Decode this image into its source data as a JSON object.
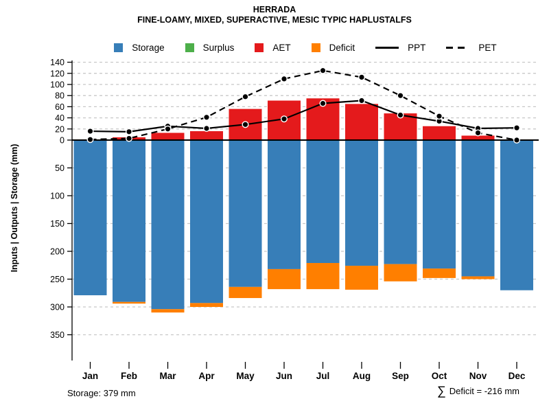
{
  "chart_data": {
    "type": "bar",
    "title": "HERRADA",
    "subtitle": "FINE-LOAMY, MIXED, SUPERACTIVE, MESIC TYPIC HAPLUSTALFS",
    "ylabel": "Inputs | Outputs | Storage  (mm)",
    "legend_position": "top",
    "grid": "dashed horizontal",
    "months": [
      "Jan",
      "Feb",
      "Mar",
      "Apr",
      "May",
      "Jun",
      "Jul",
      "Aug",
      "Sep",
      "Oct",
      "Nov",
      "Dec"
    ],
    "y_ticks_above_zero": [
      0,
      20,
      40,
      60,
      80,
      100,
      120,
      140
    ],
    "y_ticks_below_zero": [
      50,
      100,
      150,
      200,
      250,
      300,
      350
    ],
    "axis_note": "values above zero are inputs/outputs (mm), values below zero are storage depth (mm)",
    "series": [
      {
        "name": "Storage",
        "marker": "square",
        "direction": "down",
        "color": "#377EB8",
        "values": [
          279,
          291,
          304,
          293,
          264,
          232,
          221,
          226,
          223,
          231,
          245,
          270
        ]
      },
      {
        "name": "Surplus",
        "marker": "square",
        "direction": "up-stacked-on-AET",
        "color": "#4DAF4A",
        "values": [
          0,
          0,
          0,
          0,
          0,
          0,
          0,
          0,
          0,
          0,
          0,
          0
        ]
      },
      {
        "name": "AET",
        "marker": "square",
        "direction": "up",
        "color": "#E41A1C",
        "values": [
          0,
          5,
          13,
          16,
          56,
          71,
          75,
          65,
          48,
          25,
          8,
          0
        ]
      },
      {
        "name": "Deficit",
        "marker": "square",
        "direction": "down-stacked-on-Storage",
        "color": "#FF7F00",
        "values": [
          0,
          3,
          6,
          7,
          20,
          36,
          47,
          43,
          31,
          17,
          5,
          0
        ]
      },
      {
        "name": "PPT",
        "marker": "line-solid",
        "direction": "line",
        "color": "#000000",
        "values": [
          16,
          15,
          25,
          21,
          28,
          38,
          66,
          71,
          45,
          34,
          21,
          22
        ]
      },
      {
        "name": "PET",
        "marker": "line-dashed",
        "direction": "line",
        "color": "#000000",
        "values": [
          1,
          3,
          20,
          41,
          78,
          110,
          125,
          113,
          80,
          43,
          13,
          0
        ]
      }
    ],
    "colors": {
      "grid": "#C8C8C8",
      "axis": "#000000",
      "point_fill": "#000000",
      "point_ring": "#FFFFFF"
    },
    "footer_left": "Storage: 379 mm",
    "footer_right_sigma": "∑",
    "footer_right_text": "Deficit = -216 mm"
  }
}
